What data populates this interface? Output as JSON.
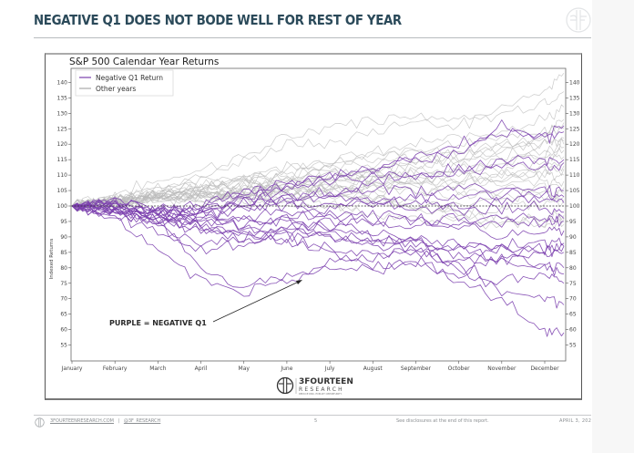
{
  "slide": {
    "title": "NEGATIVE Q1 DOES NOT BODE WELL FOR REST OF YEAR"
  },
  "footer": {
    "website": "3FOURTEENRESEARCH.COM",
    "separator": "|",
    "handle": "@3F_RESEARCH",
    "page_number": "5",
    "disclosure": "See disclosures at the end of this report.",
    "date": "APRIL 3, 202"
  },
  "brand": {
    "name": "3FOURTEEN",
    "sub": "RESEARCH",
    "tagline": "REDUCE RISK. EXPLOIT OPPORTUNITY."
  },
  "colors": {
    "title": "#2b4a5a",
    "negative_q1": "#7b3fae",
    "other_years": "#c4c4c4",
    "baseline": "#333333"
  },
  "chart_data": {
    "type": "line",
    "title": "S&P 500 Calendar Year Returns",
    "xlabel": "",
    "ylabel": "Indexed Returns",
    "x_tick_labels": [
      "January",
      "February",
      "March",
      "April",
      "May",
      "June",
      "July",
      "August",
      "September",
      "October",
      "November",
      "December"
    ],
    "y_ticks": [
      55,
      60,
      65,
      70,
      75,
      80,
      85,
      90,
      95,
      100,
      105,
      110,
      115,
      120,
      125,
      130,
      135,
      140
    ],
    "ylim": [
      50,
      145
    ],
    "y_axis_mirrored_right": true,
    "grid": false,
    "baseline": 100,
    "legend": {
      "placement": "top-left",
      "entries": [
        {
          "label": "Negative Q1 Return",
          "series_group": "negative_q1"
        },
        {
          "label": "Other years",
          "series_group": "other_years"
        }
      ]
    },
    "annotation": {
      "text": "PURPLE = NEGATIVE Q1",
      "points_to_month": 6.4,
      "points_to_value": 74
    },
    "series_groups": {
      "negative_q1": {
        "name": "Negative Q1 Return",
        "note": "approximate year-end index levels for years with negative Q1 (path per year, values at month starts Jan..Dec then year end)",
        "paths": [
          [
            100,
            98,
            94,
            88,
            89,
            90,
            86,
            80,
            82,
            75,
            70,
            60,
            59
          ],
          [
            100,
            97,
            92,
            86,
            88,
            92,
            96,
            90,
            88,
            80,
            72,
            70,
            68
          ],
          [
            100,
            99,
            95,
            80,
            74,
            78,
            82,
            84,
            86,
            80,
            76,
            78,
            75
          ],
          [
            100,
            96,
            86,
            76,
            72,
            76,
            80,
            79,
            82,
            78,
            84,
            80,
            80
          ],
          [
            100,
            98,
            96,
            92,
            90,
            92,
            90,
            88,
            86,
            84,
            86,
            85,
            87
          ],
          [
            100,
            99,
            97,
            94,
            92,
            94,
            93,
            92,
            90,
            88,
            87,
            88,
            88
          ],
          [
            100,
            101,
            98,
            95,
            96,
            95,
            94,
            96,
            93,
            94,
            90,
            92,
            92
          ],
          [
            100,
            99,
            97,
            96,
            96,
            98,
            97,
            98,
            95,
            96,
            97,
            96,
            96
          ],
          [
            100,
            98,
            97,
            97,
            99,
            100,
            99,
            101,
            100,
            98,
            99,
            100,
            98
          ],
          [
            100,
            101,
            99,
            98,
            99,
            101,
            100,
            102,
            101,
            100,
            101,
            102,
            101
          ],
          [
            100,
            99,
            98,
            97,
            100,
            102,
            103,
            101,
            103,
            103,
            104,
            104,
            103
          ],
          [
            100,
            100,
            98,
            99,
            101,
            103,
            104,
            106,
            104,
            106,
            106,
            105,
            105
          ],
          [
            100,
            101,
            99,
            98,
            102,
            104,
            103,
            108,
            110,
            112,
            114,
            115,
            115
          ],
          [
            100,
            99,
            97,
            99,
            103,
            106,
            108,
            110,
            109,
            111,
            113,
            112,
            114
          ],
          [
            100,
            100,
            98,
            100,
            104,
            108,
            110,
            112,
            116,
            120,
            124,
            122,
            124
          ],
          [
            100,
            101,
            99,
            100,
            104,
            107,
            109,
            112,
            114,
            118,
            126,
            123,
            126
          ],
          [
            100,
            97,
            95,
            94,
            93,
            90,
            91,
            89,
            88,
            86,
            87,
            86,
            87
          ],
          [
            100,
            98,
            95,
            92,
            90,
            88,
            86,
            85,
            84,
            82,
            83,
            84,
            85
          ],
          [
            100,
            99,
            96,
            93,
            91,
            92,
            90,
            88,
            89,
            86,
            82,
            80,
            78
          ],
          [
            100,
            100,
            97,
            95,
            94,
            96,
            97,
            95,
            96,
            93,
            95,
            94,
            95
          ]
        ]
      },
      "other_years": {
        "name": "Other years",
        "note": "approximate paths for years with positive Q1",
        "paths": [
          [
            100,
            104,
            108,
            112,
            116,
            122,
            126,
            128,
            130,
            128,
            132,
            136,
            143
          ],
          [
            100,
            103,
            106,
            110,
            114,
            120,
            120,
            124,
            128,
            126,
            130,
            134,
            137
          ],
          [
            100,
            102,
            105,
            108,
            110,
            113,
            115,
            117,
            120,
            122,
            125,
            128,
            132
          ],
          [
            100,
            101,
            104,
            106,
            109,
            112,
            114,
            116,
            118,
            117,
            120,
            122,
            125
          ],
          [
            100,
            103,
            104,
            107,
            108,
            110,
            112,
            114,
            115,
            116,
            118,
            120,
            121
          ],
          [
            100,
            102,
            103,
            105,
            107,
            108,
            110,
            111,
            113,
            115,
            117,
            118,
            120
          ],
          [
            100,
            101,
            103,
            104,
            106,
            107,
            108,
            110,
            111,
            112,
            114,
            116,
            118
          ],
          [
            100,
            102,
            104,
            103,
            105,
            106,
            107,
            109,
            110,
            111,
            112,
            114,
            116
          ],
          [
            100,
            101,
            102,
            103,
            104,
            105,
            106,
            107,
            108,
            109,
            111,
            112,
            114
          ],
          [
            100,
            102,
            103,
            102,
            104,
            106,
            105,
            107,
            108,
            110,
            110,
            111,
            112
          ],
          [
            100,
            101,
            103,
            104,
            103,
            105,
            106,
            106,
            107,
            108,
            109,
            110,
            110
          ],
          [
            100,
            102,
            102,
            103,
            104,
            104,
            105,
            106,
            105,
            106,
            107,
            108,
            108
          ],
          [
            100,
            101,
            102,
            103,
            102,
            103,
            104,
            104,
            105,
            104,
            105,
            106,
            106
          ],
          [
            100,
            102,
            104,
            105,
            107,
            104,
            103,
            102,
            101,
            100,
            102,
            104,
            104
          ],
          [
            100,
            101,
            103,
            104,
            105,
            106,
            104,
            103,
            100,
            98,
            99,
            101,
            102
          ],
          [
            100,
            103,
            105,
            106,
            108,
            109,
            110,
            108,
            106,
            104,
            103,
            103,
            103
          ],
          [
            100,
            102,
            104,
            106,
            108,
            110,
            112,
            110,
            108,
            107,
            109,
            111,
            113
          ],
          [
            100,
            101,
            102,
            104,
            106,
            108,
            107,
            108,
            110,
            112,
            114,
            117,
            119
          ],
          [
            100,
            102,
            103,
            105,
            104,
            106,
            108,
            111,
            113,
            116,
            118,
            120,
            122
          ],
          [
            100,
            101,
            103,
            104,
            106,
            108,
            110,
            112,
            114,
            117,
            120,
            123,
            127
          ],
          [
            100,
            102,
            104,
            106,
            108,
            110,
            113,
            116,
            118,
            120,
            122,
            124,
            128
          ],
          [
            100,
            101,
            103,
            102,
            103,
            104,
            105,
            103,
            100,
            98,
            95,
            96,
            97
          ],
          [
            100,
            102,
            103,
            104,
            103,
            101,
            99,
            97,
            96,
            95,
            94,
            95,
            96
          ],
          [
            100,
            101,
            102,
            103,
            104,
            102,
            100,
            101,
            99,
            97,
            96,
            94,
            94
          ]
        ]
      }
    }
  }
}
